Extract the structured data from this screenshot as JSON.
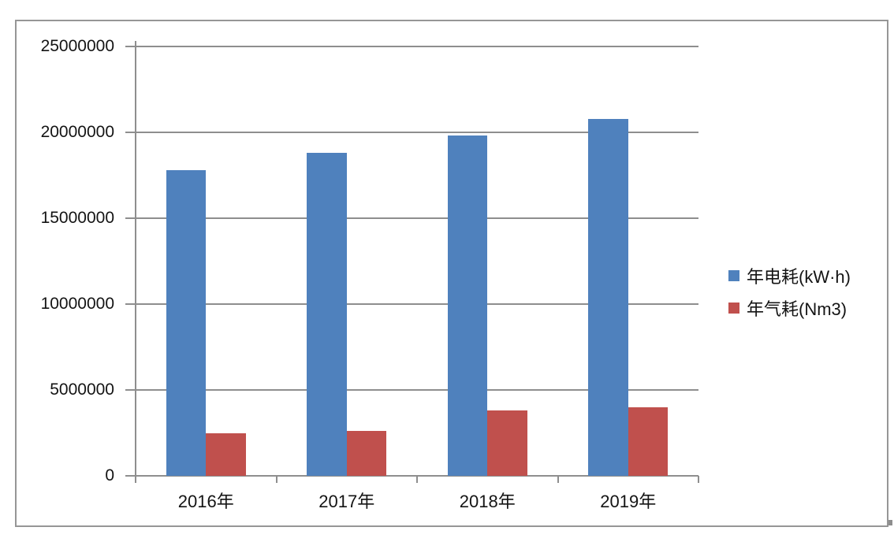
{
  "chart_data": {
    "type": "bar",
    "title": "",
    "xlabel": "",
    "ylabel": "",
    "categories": [
      "2016年",
      "2017年",
      "2018年",
      "2019年"
    ],
    "series": [
      {
        "name": "年电耗(kW·h)",
        "color": "#4F81BD",
        "values": [
          17800000,
          18800000,
          19800000,
          20800000
        ]
      },
      {
        "name": "年气耗(Nm3)",
        "color": "#C0504D",
        "values": [
          2500000,
          2600000,
          3800000,
          4000000
        ]
      }
    ],
    "y_axis": {
      "min": 0,
      "max": 25000000,
      "tick_interval": 5000000,
      "tick_labels": [
        "0",
        "5000000",
        "10000000",
        "15000000",
        "20000000",
        "25000000"
      ]
    },
    "grid": true,
    "legend_position": "right"
  },
  "colors": {
    "axis": "#8e8e8e",
    "gridline": "#8e8e8e",
    "frame_border": "#969696",
    "background": "#ffffff",
    "text": "#141414"
  }
}
